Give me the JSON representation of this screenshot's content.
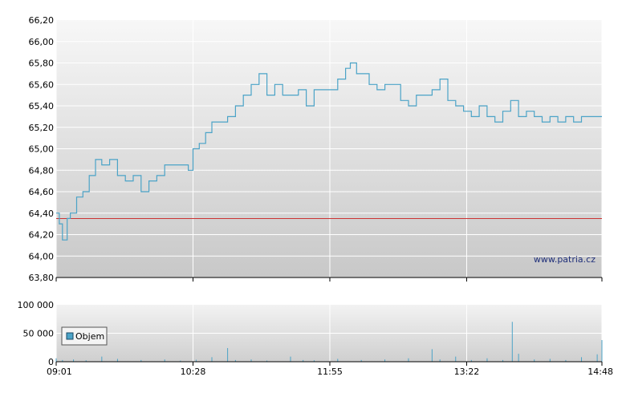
{
  "watermark": "www.patria.cz",
  "chart_data": [
    {
      "type": "line",
      "ylim": [
        63.8,
        66.2
      ],
      "y_ticks": [
        "66,20",
        "66,00",
        "65,80",
        "65,60",
        "65,40",
        "65,20",
        "65,00",
        "64,80",
        "64,60",
        "64,40",
        "64,20",
        "64,00",
        "63,80"
      ],
      "y_tick_values": [
        66.2,
        66.0,
        65.8,
        65.6,
        65.4,
        65.2,
        65.0,
        64.8,
        64.6,
        64.4,
        64.2,
        64.0,
        63.8
      ],
      "x_ticks": [
        "09:01",
        "10:28",
        "11:55",
        "13:22",
        "14:48"
      ],
      "reference_line": {
        "value": 64.35,
        "color": "#cc3333"
      },
      "series": [
        {
          "color": "#4ba3c7",
          "x": [
            "09:01",
            "09:03",
            "09:05",
            "09:08",
            "09:10",
            "09:14",
            "09:18",
            "09:22",
            "09:26",
            "09:30",
            "09:35",
            "09:40",
            "09:45",
            "09:50",
            "09:55",
            "10:00",
            "10:05",
            "10:10",
            "10:15",
            "10:20",
            "10:25",
            "10:28",
            "10:32",
            "10:36",
            "10:40",
            "10:45",
            "10:50",
            "10:55",
            "11:00",
            "11:05",
            "11:10",
            "11:15",
            "11:20",
            "11:25",
            "11:30",
            "11:35",
            "11:40",
            "11:45",
            "11:50",
            "11:55",
            "12:00",
            "12:05",
            "12:08",
            "12:12",
            "12:16",
            "12:20",
            "12:25",
            "12:30",
            "12:35",
            "12:40",
            "12:45",
            "12:50",
            "12:55",
            "13:00",
            "13:05",
            "13:10",
            "13:15",
            "13:20",
            "13:25",
            "13:30",
            "13:35",
            "13:40",
            "13:45",
            "13:50",
            "13:55",
            "14:00",
            "14:05",
            "14:10",
            "14:15",
            "14:20",
            "14:25",
            "14:30",
            "14:35",
            "14:40",
            "14:45",
            "14:48"
          ],
          "values": [
            64.4,
            64.3,
            64.15,
            64.35,
            64.4,
            64.55,
            64.6,
            64.75,
            64.9,
            64.85,
            64.9,
            64.75,
            64.7,
            64.75,
            64.6,
            64.7,
            64.75,
            64.85,
            64.85,
            64.85,
            64.8,
            65.0,
            65.05,
            65.15,
            65.25,
            65.25,
            65.3,
            65.4,
            65.5,
            65.6,
            65.7,
            65.5,
            65.6,
            65.5,
            65.5,
            65.55,
            65.4,
            65.55,
            65.55,
            65.55,
            65.65,
            65.75,
            65.8,
            65.7,
            65.7,
            65.6,
            65.55,
            65.6,
            65.6,
            65.45,
            65.4,
            65.5,
            65.5,
            65.55,
            65.65,
            65.45,
            65.4,
            65.35,
            65.3,
            65.4,
            65.3,
            65.25,
            65.35,
            65.45,
            65.3,
            65.35,
            65.3,
            65.25,
            65.3,
            65.25,
            65.3,
            65.25,
            65.3,
            65.3,
            65.3,
            65.3
          ]
        }
      ]
    },
    {
      "type": "bar",
      "ylim": [
        0,
        100000
      ],
      "y_ticks": [
        "100 000",
        "50 000",
        "0"
      ],
      "y_tick_values": [
        100000,
        50000,
        0
      ],
      "x_ticks": [
        "09:01",
        "10:28",
        "11:55",
        "13:22",
        "14:48"
      ],
      "legend": "Objem",
      "color": "#4ba3c7",
      "times": [
        "09:01",
        "09:05",
        "09:12",
        "09:20",
        "09:30",
        "09:40",
        "09:55",
        "10:10",
        "10:20",
        "10:30",
        "10:40",
        "10:50",
        "10:55",
        "11:05",
        "11:15",
        "11:30",
        "11:38",
        "11:45",
        "12:00",
        "12:15",
        "12:30",
        "12:45",
        "13:00",
        "13:05",
        "13:15",
        "13:25",
        "13:35",
        "13:45",
        "13:51",
        "13:55",
        "14:05",
        "14:15",
        "14:25",
        "14:35",
        "14:45",
        "14:48"
      ],
      "values": [
        6000,
        3000,
        4000,
        2500,
        9000,
        5000,
        3000,
        4000,
        2000,
        3500,
        8000,
        24000,
        3000,
        4000,
        2000,
        9000,
        3000,
        2500,
        5000,
        3000,
        4000,
        6000,
        22000,
        4000,
        9000,
        3000,
        6000,
        3000,
        70000,
        14000,
        4000,
        5000,
        3000,
        8000,
        13000,
        38000
      ]
    }
  ]
}
